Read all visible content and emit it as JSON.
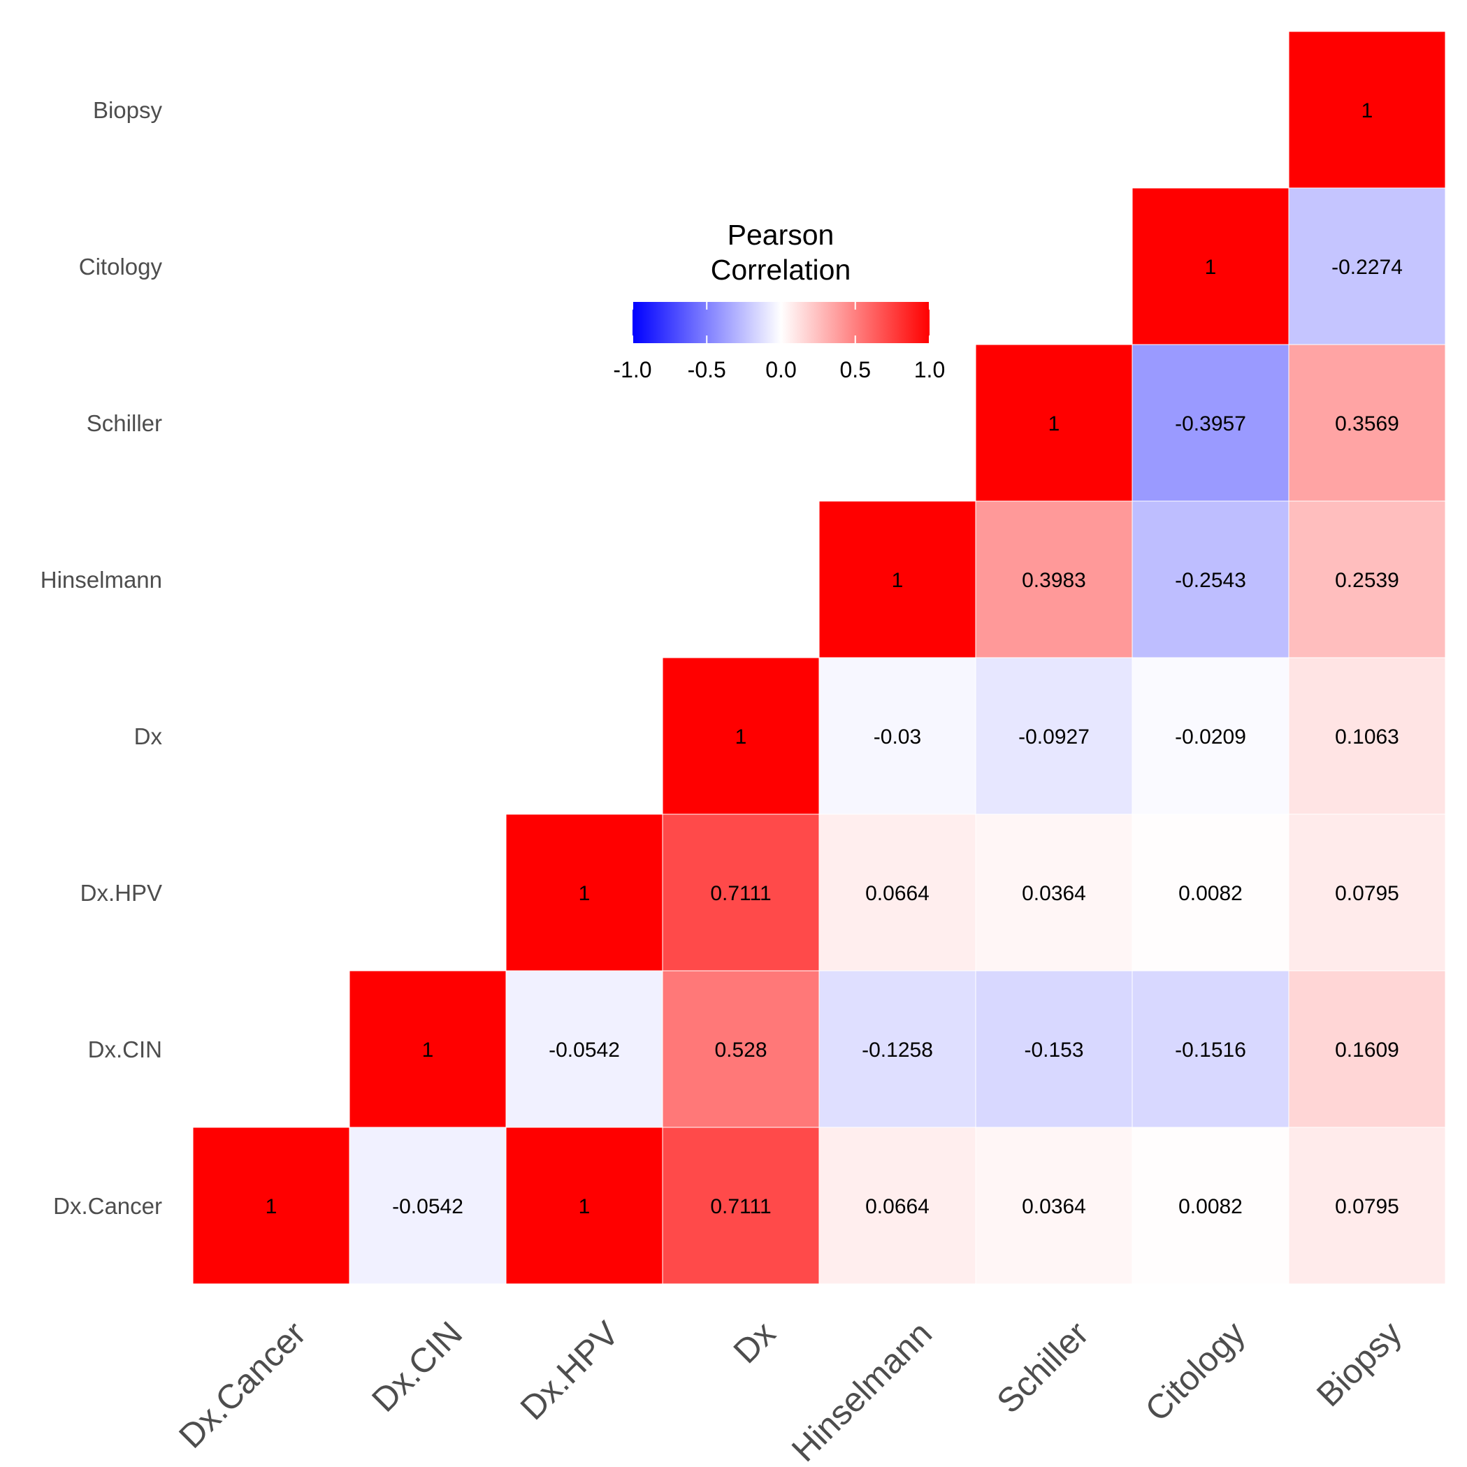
{
  "chart_data": {
    "type": "heatmap",
    "variables": [
      "Dx.Cancer",
      "Dx.CIN",
      "Dx.HPV",
      "Dx",
      "Hinselmann",
      "Schiller",
      "Citology",
      "Biopsy"
    ],
    "cells": [
      {
        "x": "Dx.Cancer",
        "y": "Dx.Cancer",
        "value": 1,
        "label": "1"
      },
      {
        "x": "Dx.CIN",
        "y": "Dx.Cancer",
        "value": -0.0542,
        "label": "-0.0542"
      },
      {
        "x": "Dx.HPV",
        "y": "Dx.Cancer",
        "value": 1,
        "label": "1"
      },
      {
        "x": "Dx",
        "y": "Dx.Cancer",
        "value": 0.7111,
        "label": "0.7111"
      },
      {
        "x": "Hinselmann",
        "y": "Dx.Cancer",
        "value": 0.0664,
        "label": "0.0664"
      },
      {
        "x": "Schiller",
        "y": "Dx.Cancer",
        "value": 0.0364,
        "label": "0.0364"
      },
      {
        "x": "Citology",
        "y": "Dx.Cancer",
        "value": 0.0082,
        "label": "0.0082"
      },
      {
        "x": "Biopsy",
        "y": "Dx.Cancer",
        "value": 0.0795,
        "label": "0.0795"
      },
      {
        "x": "Dx.CIN",
        "y": "Dx.CIN",
        "value": 1,
        "label": "1"
      },
      {
        "x": "Dx.HPV",
        "y": "Dx.CIN",
        "value": -0.0542,
        "label": "-0.0542"
      },
      {
        "x": "Dx",
        "y": "Dx.CIN",
        "value": 0.528,
        "label": "0.528"
      },
      {
        "x": "Hinselmann",
        "y": "Dx.CIN",
        "value": -0.1258,
        "label": "-0.1258"
      },
      {
        "x": "Schiller",
        "y": "Dx.CIN",
        "value": -0.153,
        "label": "-0.153"
      },
      {
        "x": "Citology",
        "y": "Dx.CIN",
        "value": -0.1516,
        "label": "-0.1516"
      },
      {
        "x": "Biopsy",
        "y": "Dx.CIN",
        "value": 0.1609,
        "label": "0.1609"
      },
      {
        "x": "Dx.HPV",
        "y": "Dx.HPV",
        "value": 1,
        "label": "1"
      },
      {
        "x": "Dx",
        "y": "Dx.HPV",
        "value": 0.7111,
        "label": "0.7111"
      },
      {
        "x": "Hinselmann",
        "y": "Dx.HPV",
        "value": 0.0664,
        "label": "0.0664"
      },
      {
        "x": "Schiller",
        "y": "Dx.HPV",
        "value": 0.0364,
        "label": "0.0364"
      },
      {
        "x": "Citology",
        "y": "Dx.HPV",
        "value": 0.0082,
        "label": "0.0082"
      },
      {
        "x": "Biopsy",
        "y": "Dx.HPV",
        "value": 0.0795,
        "label": "0.0795"
      },
      {
        "x": "Dx",
        "y": "Dx",
        "value": 1,
        "label": "1"
      },
      {
        "x": "Hinselmann",
        "y": "Dx",
        "value": -0.03,
        "label": "-0.03"
      },
      {
        "x": "Schiller",
        "y": "Dx",
        "value": -0.0927,
        "label": "-0.0927"
      },
      {
        "x": "Citology",
        "y": "Dx",
        "value": -0.0209,
        "label": "-0.0209"
      },
      {
        "x": "Biopsy",
        "y": "Dx",
        "value": 0.1063,
        "label": "0.1063"
      },
      {
        "x": "Hinselmann",
        "y": "Hinselmann",
        "value": 1,
        "label": "1"
      },
      {
        "x": "Schiller",
        "y": "Hinselmann",
        "value": 0.3983,
        "label": "0.3983"
      },
      {
        "x": "Citology",
        "y": "Hinselmann",
        "value": -0.2543,
        "label": "-0.2543"
      },
      {
        "x": "Biopsy",
        "y": "Hinselmann",
        "value": 0.2539,
        "label": "0.2539"
      },
      {
        "x": "Schiller",
        "y": "Schiller",
        "value": 1,
        "label": "1"
      },
      {
        "x": "Citology",
        "y": "Schiller",
        "value": -0.3957,
        "label": "-0.3957"
      },
      {
        "x": "Biopsy",
        "y": "Schiller",
        "value": 0.3569,
        "label": "0.3569"
      },
      {
        "x": "Citology",
        "y": "Citology",
        "value": 1,
        "label": "1"
      },
      {
        "x": "Biopsy",
        "y": "Citology",
        "value": -0.2274,
        "label": "-0.2274"
      },
      {
        "x": "Biopsy",
        "y": "Biopsy",
        "value": 1,
        "label": "1"
      }
    ],
    "legend": {
      "title_line1": "Pearson",
      "title_line2": "Correlation",
      "ticks": [
        {
          "value": -1.0,
          "label": "-1.0"
        },
        {
          "value": -0.5,
          "label": "-0.5"
        },
        {
          "value": 0.0,
          "label": "0.0"
        },
        {
          "value": 0.5,
          "label": "0.5"
        },
        {
          "value": 1.0,
          "label": "1.0"
        }
      ],
      "limits": [
        -1,
        1
      ],
      "low_color": "#0000ff",
      "mid_color": "#ffffff",
      "high_color": "#ff0000",
      "placement": "inside-top-center"
    },
    "grid": false
  }
}
